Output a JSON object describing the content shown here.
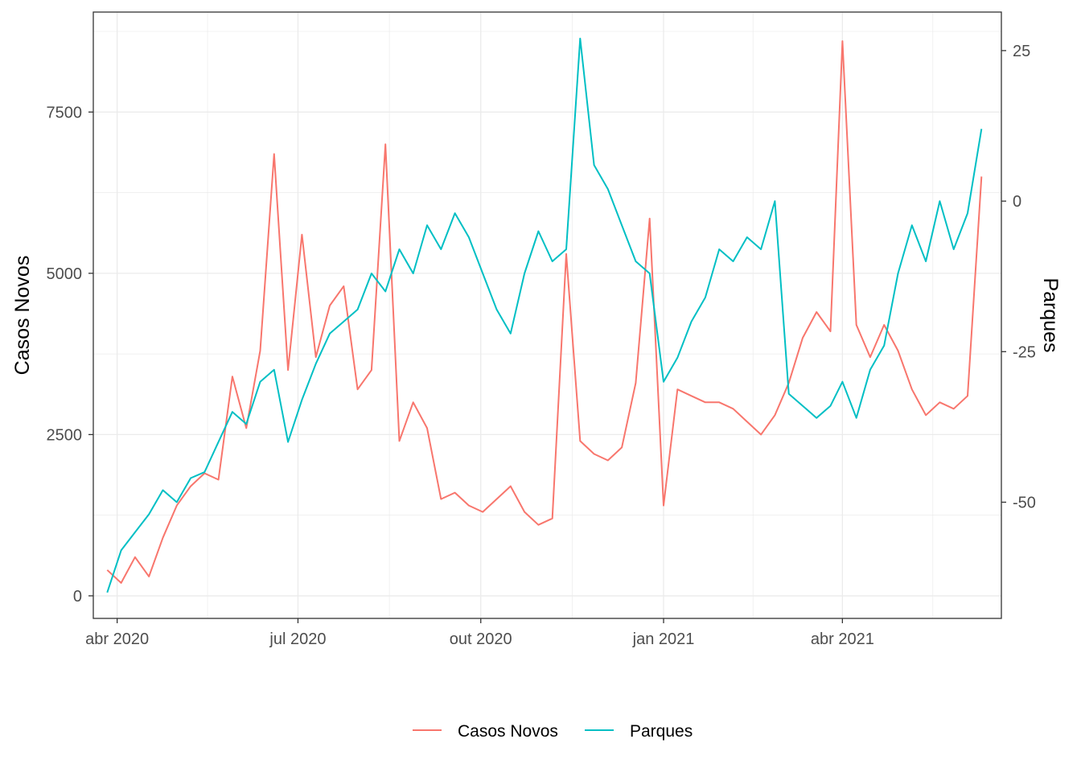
{
  "chart_data": {
    "type": "line",
    "ylabel": "Casos Novos",
    "y2label": "Parques",
    "x_ticks": [
      {
        "label": "abr 2020",
        "date": "2020-04-01"
      },
      {
        "label": "jul 2020",
        "date": "2020-07-01"
      },
      {
        "label": "out 2020",
        "date": "2020-10-01"
      },
      {
        "label": "jan 2021",
        "date": "2021-01-01"
      },
      {
        "label": "abr 2021",
        "date": "2021-04-01"
      }
    ],
    "y_ticks": [
      "0",
      "2500",
      "5000",
      "7500"
    ],
    "y2_ticks": [
      "-50",
      "-25",
      "0",
      "25"
    ],
    "xlim": [
      "2020-03-20",
      "2021-06-20"
    ],
    "ylim": [
      -350,
      9050
    ],
    "y2lim": [
      -69.3,
      31.4
    ],
    "grid": true,
    "legend_position": "bottom",
    "series": [
      {
        "name": "Casos Novos",
        "axis": "left",
        "color": "#F8766D",
        "points": [
          [
            "2020-03-27",
            400
          ],
          [
            "2020-04-03",
            200
          ],
          [
            "2020-04-10",
            600
          ],
          [
            "2020-04-17",
            300
          ],
          [
            "2020-04-24",
            900
          ],
          [
            "2020-05-01",
            1400
          ],
          [
            "2020-05-08",
            1700
          ],
          [
            "2020-05-15",
            1900
          ],
          [
            "2020-05-22",
            1800
          ],
          [
            "2020-05-29",
            3400
          ],
          [
            "2020-06-05",
            2600
          ],
          [
            "2020-06-12",
            3800
          ],
          [
            "2020-06-19",
            6850
          ],
          [
            "2020-06-26",
            3500
          ],
          [
            "2020-07-03",
            5600
          ],
          [
            "2020-07-10",
            3700
          ],
          [
            "2020-07-17",
            4500
          ],
          [
            "2020-07-24",
            4800
          ],
          [
            "2020-07-31",
            3200
          ],
          [
            "2020-08-07",
            3500
          ],
          [
            "2020-08-14",
            7000
          ],
          [
            "2020-08-21",
            2400
          ],
          [
            "2020-08-28",
            3000
          ],
          [
            "2020-09-04",
            2600
          ],
          [
            "2020-09-11",
            1500
          ],
          [
            "2020-09-18",
            1600
          ],
          [
            "2020-09-25",
            1400
          ],
          [
            "2020-10-02",
            1300
          ],
          [
            "2020-10-09",
            1500
          ],
          [
            "2020-10-16",
            1700
          ],
          [
            "2020-10-23",
            1300
          ],
          [
            "2020-10-30",
            1100
          ],
          [
            "2020-11-06",
            1200
          ],
          [
            "2020-11-13",
            5300
          ],
          [
            "2020-11-20",
            2400
          ],
          [
            "2020-11-27",
            2200
          ],
          [
            "2020-12-04",
            2100
          ],
          [
            "2020-12-11",
            2300
          ],
          [
            "2020-12-18",
            3300
          ],
          [
            "2020-12-25",
            5850
          ],
          [
            "2021-01-01",
            1400
          ],
          [
            "2021-01-08",
            3200
          ],
          [
            "2021-01-15",
            3100
          ],
          [
            "2021-01-22",
            3000
          ],
          [
            "2021-01-29",
            3000
          ],
          [
            "2021-02-05",
            2900
          ],
          [
            "2021-02-12",
            2700
          ],
          [
            "2021-02-19",
            2500
          ],
          [
            "2021-02-26",
            2800
          ],
          [
            "2021-03-05",
            3300
          ],
          [
            "2021-03-12",
            4000
          ],
          [
            "2021-03-19",
            4400
          ],
          [
            "2021-03-26",
            4100
          ],
          [
            "2021-04-01",
            8600
          ],
          [
            "2021-04-08",
            4200
          ],
          [
            "2021-04-15",
            3700
          ],
          [
            "2021-04-22",
            4200
          ],
          [
            "2021-04-29",
            3800
          ],
          [
            "2021-05-06",
            3200
          ],
          [
            "2021-05-13",
            2800
          ],
          [
            "2021-05-20",
            3000
          ],
          [
            "2021-05-27",
            2900
          ],
          [
            "2021-06-03",
            3100
          ],
          [
            "2021-06-10",
            6500
          ]
        ]
      },
      {
        "name": "Parques",
        "axis": "right",
        "color": "#00BFC4",
        "points": [
          [
            "2020-03-27",
            -65
          ],
          [
            "2020-04-03",
            -58
          ],
          [
            "2020-04-10",
            -55
          ],
          [
            "2020-04-17",
            -52
          ],
          [
            "2020-04-24",
            -48
          ],
          [
            "2020-05-01",
            -50
          ],
          [
            "2020-05-08",
            -46
          ],
          [
            "2020-05-15",
            -45
          ],
          [
            "2020-05-22",
            -40
          ],
          [
            "2020-05-29",
            -35
          ],
          [
            "2020-06-05",
            -37
          ],
          [
            "2020-06-12",
            -30
          ],
          [
            "2020-06-19",
            -28
          ],
          [
            "2020-06-26",
            -40
          ],
          [
            "2020-07-03",
            -33
          ],
          [
            "2020-07-10",
            -27
          ],
          [
            "2020-07-17",
            -22
          ],
          [
            "2020-07-24",
            -20
          ],
          [
            "2020-07-31",
            -18
          ],
          [
            "2020-08-07",
            -12
          ],
          [
            "2020-08-14",
            -15
          ],
          [
            "2020-08-21",
            -8
          ],
          [
            "2020-08-28",
            -12
          ],
          [
            "2020-09-04",
            -4
          ],
          [
            "2020-09-11",
            -8
          ],
          [
            "2020-09-18",
            -2
          ],
          [
            "2020-09-25",
            -6
          ],
          [
            "2020-10-02",
            -12
          ],
          [
            "2020-10-09",
            -18
          ],
          [
            "2020-10-16",
            -22
          ],
          [
            "2020-10-23",
            -12
          ],
          [
            "2020-10-30",
            -5
          ],
          [
            "2020-11-06",
            -10
          ],
          [
            "2020-11-13",
            -8
          ],
          [
            "2020-11-20",
            27
          ],
          [
            "2020-11-27",
            6
          ],
          [
            "2020-12-04",
            2
          ],
          [
            "2020-12-11",
            -4
          ],
          [
            "2020-12-18",
            -10
          ],
          [
            "2020-12-25",
            -12
          ],
          [
            "2021-01-01",
            -30
          ],
          [
            "2021-01-08",
            -26
          ],
          [
            "2021-01-15",
            -20
          ],
          [
            "2021-01-22",
            -16
          ],
          [
            "2021-01-29",
            -8
          ],
          [
            "2021-02-05",
            -10
          ],
          [
            "2021-02-12",
            -6
          ],
          [
            "2021-02-19",
            -8
          ],
          [
            "2021-02-26",
            0
          ],
          [
            "2021-03-05",
            -32
          ],
          [
            "2021-03-12",
            -34
          ],
          [
            "2021-03-19",
            -36
          ],
          [
            "2021-03-26",
            -34
          ],
          [
            "2021-04-01",
            -30
          ],
          [
            "2021-04-08",
            -36
          ],
          [
            "2021-04-15",
            -28
          ],
          [
            "2021-04-22",
            -24
          ],
          [
            "2021-04-29",
            -12
          ],
          [
            "2021-05-06",
            -4
          ],
          [
            "2021-05-13",
            -10
          ],
          [
            "2021-05-20",
            0
          ],
          [
            "2021-05-27",
            -8
          ],
          [
            "2021-06-03",
            -2
          ],
          [
            "2021-06-10",
            12
          ]
        ]
      }
    ]
  }
}
